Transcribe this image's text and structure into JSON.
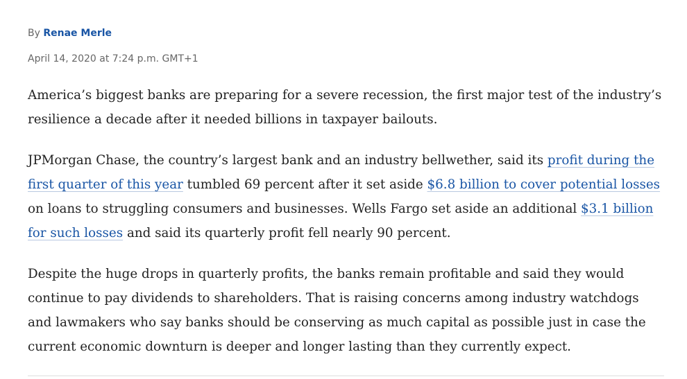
{
  "byline": {
    "prefix": "By",
    "author": "Renae Merle"
  },
  "date": "April 14, 2020 at 7:24 p.m. GMT+1",
  "paragraphs": [
    {
      "segments": [
        {
          "text": "America’s biggest banks are preparing for a severe recession, the first major test of the industry’s resilience a decade after it needed billions in taxpayer bailouts.",
          "link": false
        }
      ]
    },
    {
      "segments": [
        {
          "text": "JPMorgan Chase, the country’s largest bank and an industry bellwether, said its",
          "link": false
        },
        {
          "text": "profit during the first quarter of this year",
          "link": true
        },
        {
          "text": "tumbled 69 percent after it set aside",
          "link": false
        },
        {
          "text": "$6.8 billion to cover potential losses",
          "link": true
        },
        {
          "text": "on loans to struggling consumers and businesses. Wells Fargo set aside an additional",
          "link": false
        },
        {
          "text": "$3.1 billion for such losses",
          "link": true
        },
        {
          "text": "and said its quarterly profit fell nearly 90 percent.",
          "link": false
        }
      ]
    },
    {
      "segments": [
        {
          "text": "Despite the huge drops in quarterly profits, the banks remain profitable and said they would continue to pay dividends to shareholders. That is raising concerns among industry watchdogs and lawmakers who say banks should be conserving as much capital as possible just in case the current economic downturn is deeper and longer lasting than they currently expect.",
          "link": false
        }
      ]
    }
  ]
}
